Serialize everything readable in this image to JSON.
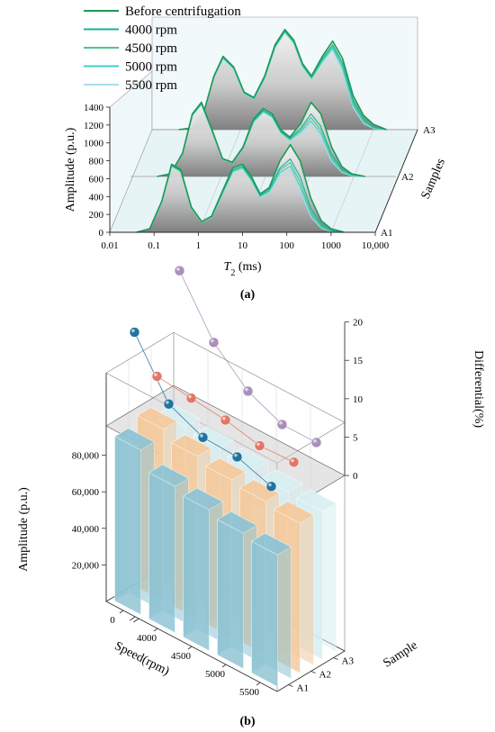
{
  "chart_data": [
    {
      "panel_label": "(a)",
      "type": "line",
      "projection": "3d-waterfall",
      "xscale": "log",
      "xlabel": "T2 (ms)",
      "ylabel": "Amplitude (p.u.)",
      "zlabel": "Samples",
      "xlim": [
        0.01,
        10000
      ],
      "ylim": [
        0,
        1400
      ],
      "x_ticks": [
        "0.01",
        "0.1",
        "1",
        "10",
        "100",
        "1000",
        "10,000"
      ],
      "y_ticks": [
        "0",
        "200",
        "400",
        "600",
        "800",
        "1000",
        "1200",
        "1400"
      ],
      "z_ticks": [
        "A1",
        "A2",
        "A3"
      ],
      "legend_position": "top-left",
      "series_names": [
        "Before centrifugation",
        "4000 rpm",
        "4500 rpm",
        "5000 rpm",
        "5500 rpm"
      ],
      "series_colors": [
        "#1f9a55",
        "#17b39b",
        "#4cc78c",
        "#3fd1cb",
        "#a9e0ea"
      ],
      "x_points": [
        0.04,
        0.08,
        0.15,
        0.25,
        0.4,
        0.7,
        1.2,
        2,
        3.5,
        6,
        10,
        16,
        25,
        40,
        70,
        120,
        200,
        350,
        600,
        1000,
        2000
      ],
      "samples": [
        {
          "name": "A1",
          "series": [
            {
              "name": "Before centrifugation",
              "values": [
                0,
                40,
                350,
                760,
                700,
                280,
                120,
                180,
                460,
                720,
                760,
                620,
                430,
                500,
                800,
                980,
                800,
                380,
                130,
                40,
                0
              ]
            },
            {
              "name": "4000 rpm",
              "values": [
                0,
                40,
                350,
                750,
                690,
                275,
                120,
                175,
                445,
                700,
                740,
                600,
                415,
                480,
                720,
                820,
                620,
                270,
                90,
                20,
                0
              ]
            },
            {
              "name": "4500 rpm",
              "values": [
                0,
                40,
                345,
                745,
                685,
                270,
                115,
                172,
                440,
                690,
                730,
                590,
                405,
                470,
                700,
                780,
                560,
                230,
                70,
                15,
                0
              ]
            },
            {
              "name": "5000 rpm",
              "values": [
                0,
                40,
                340,
                740,
                680,
                265,
                115,
                168,
                432,
                680,
                720,
                580,
                398,
                455,
                670,
                740,
                510,
                200,
                55,
                10,
                0
              ]
            },
            {
              "name": "5500 rpm",
              "values": [
                0,
                40,
                335,
                735,
                675,
                262,
                112,
                165,
                425,
                670,
                710,
                570,
                390,
                440,
                640,
                700,
                470,
                170,
                45,
                8,
                0
              ]
            }
          ]
        },
        {
          "name": "A2",
          "series": [
            {
              "name": "Before centrifugation",
              "values": [
                0,
                30,
                260,
                700,
                830,
                520,
                200,
                160,
                330,
                640,
                760,
                700,
                520,
                440,
                590,
                830,
                700,
                330,
                110,
                30,
                0
              ]
            },
            {
              "name": "4000 rpm",
              "values": [
                0,
                30,
                258,
                692,
                820,
                512,
                196,
                156,
                322,
                625,
                742,
                682,
                505,
                425,
                540,
                700,
                560,
                250,
                80,
                20,
                0
              ]
            },
            {
              "name": "4500 rpm",
              "values": [
                0,
                30,
                255,
                688,
                815,
                508,
                194,
                154,
                318,
                618,
                735,
                674,
                498,
                418,
                520,
                660,
                520,
                220,
                65,
                15,
                0
              ]
            },
            {
              "name": "5000 rpm",
              "values": [
                0,
                30,
                252,
                684,
                810,
                504,
                192,
                152,
                314,
                610,
                726,
                666,
                490,
                410,
                500,
                620,
                480,
                195,
                55,
                12,
                0
              ]
            },
            {
              "name": "5500 rpm",
              "values": [
                0,
                30,
                250,
                680,
                805,
                500,
                190,
                150,
                310,
                602,
                718,
                658,
                482,
                402,
                480,
                580,
                440,
                170,
                45,
                8,
                0
              ]
            }
          ]
        },
        {
          "name": "A3",
          "series": [
            {
              "name": "Before centrifugation",
              "values": [
                0,
                20,
                210,
                600,
                820,
                700,
                420,
                360,
                600,
                950,
                1120,
                1000,
                740,
                600,
                820,
                990,
                800,
                380,
                160,
                60,
                0
              ]
            },
            {
              "name": "4000 rpm",
              "values": [
                0,
                20,
                208,
                594,
                812,
                694,
                414,
                354,
                590,
                938,
                1108,
                988,
                728,
                588,
                796,
                950,
                750,
                330,
                120,
                30,
                0
              ]
            },
            {
              "name": "4500 rpm",
              "values": [
                0,
                20,
                206,
                590,
                806,
                688,
                410,
                350,
                584,
                930,
                1100,
                980,
                720,
                580,
                780,
                930,
                720,
                300,
                100,
                22,
                0
              ]
            },
            {
              "name": "5000 rpm",
              "values": [
                0,
                20,
                204,
                586,
                800,
                684,
                406,
                346,
                578,
                922,
                1092,
                972,
                712,
                572,
                764,
                910,
                690,
                270,
                85,
                18,
                0
              ]
            },
            {
              "name": "5500 rpm",
              "values": [
                0,
                20,
                202,
                582,
                795,
                680,
                402,
                342,
                572,
                915,
                1084,
                964,
                704,
                564,
                750,
                890,
                660,
                245,
                70,
                12,
                0
              ]
            }
          ]
        }
      ]
    },
    {
      "panel_label": "(b)",
      "type": "bar",
      "projection": "3d",
      "xlabel": "Speed(rpm)",
      "zlabel": "Sample",
      "ylabel": "Amplitude (p.u.)",
      "ylabel2": "Differential(%)",
      "categories": [
        "0",
        "4000",
        "4500",
        "5000",
        "5500"
      ],
      "samples": [
        "A1",
        "A2",
        "A3"
      ],
      "amplitude_ticks": [
        "20,000",
        "40,000",
        "60,000",
        "80,000"
      ],
      "differential_ticks": [
        "0",
        "5",
        "10",
        "15",
        "20"
      ],
      "ylim": [
        0,
        100000
      ],
      "y2lim": [
        0,
        20
      ],
      "bar_colors": [
        "#8ec3d3",
        "#f4c99c",
        "#d7eef2"
      ],
      "point_colors": [
        "#1a6d9a",
        "#e0735f",
        "#a48cb8"
      ],
      "series": [
        {
          "name": "A1",
          "values": [
            90000,
            80000,
            77000,
            74000,
            72000
          ],
          "differential": [
            12.5,
            5.5,
            3.5,
            3.3,
            1.8
          ]
        },
        {
          "name": "A2",
          "values": [
            94000,
            89000,
            86000,
            84000,
            82000
          ],
          "differential": [
            5.0,
            4.5,
            4.0,
            3.0,
            3.2
          ]
        },
        {
          "name": "A3",
          "values": [
            88000,
            86000,
            84000,
            82000,
            81000
          ],
          "differential": [
            17.0,
            10.0,
            6.0,
            4.0,
            4.0
          ]
        }
      ]
    }
  ]
}
